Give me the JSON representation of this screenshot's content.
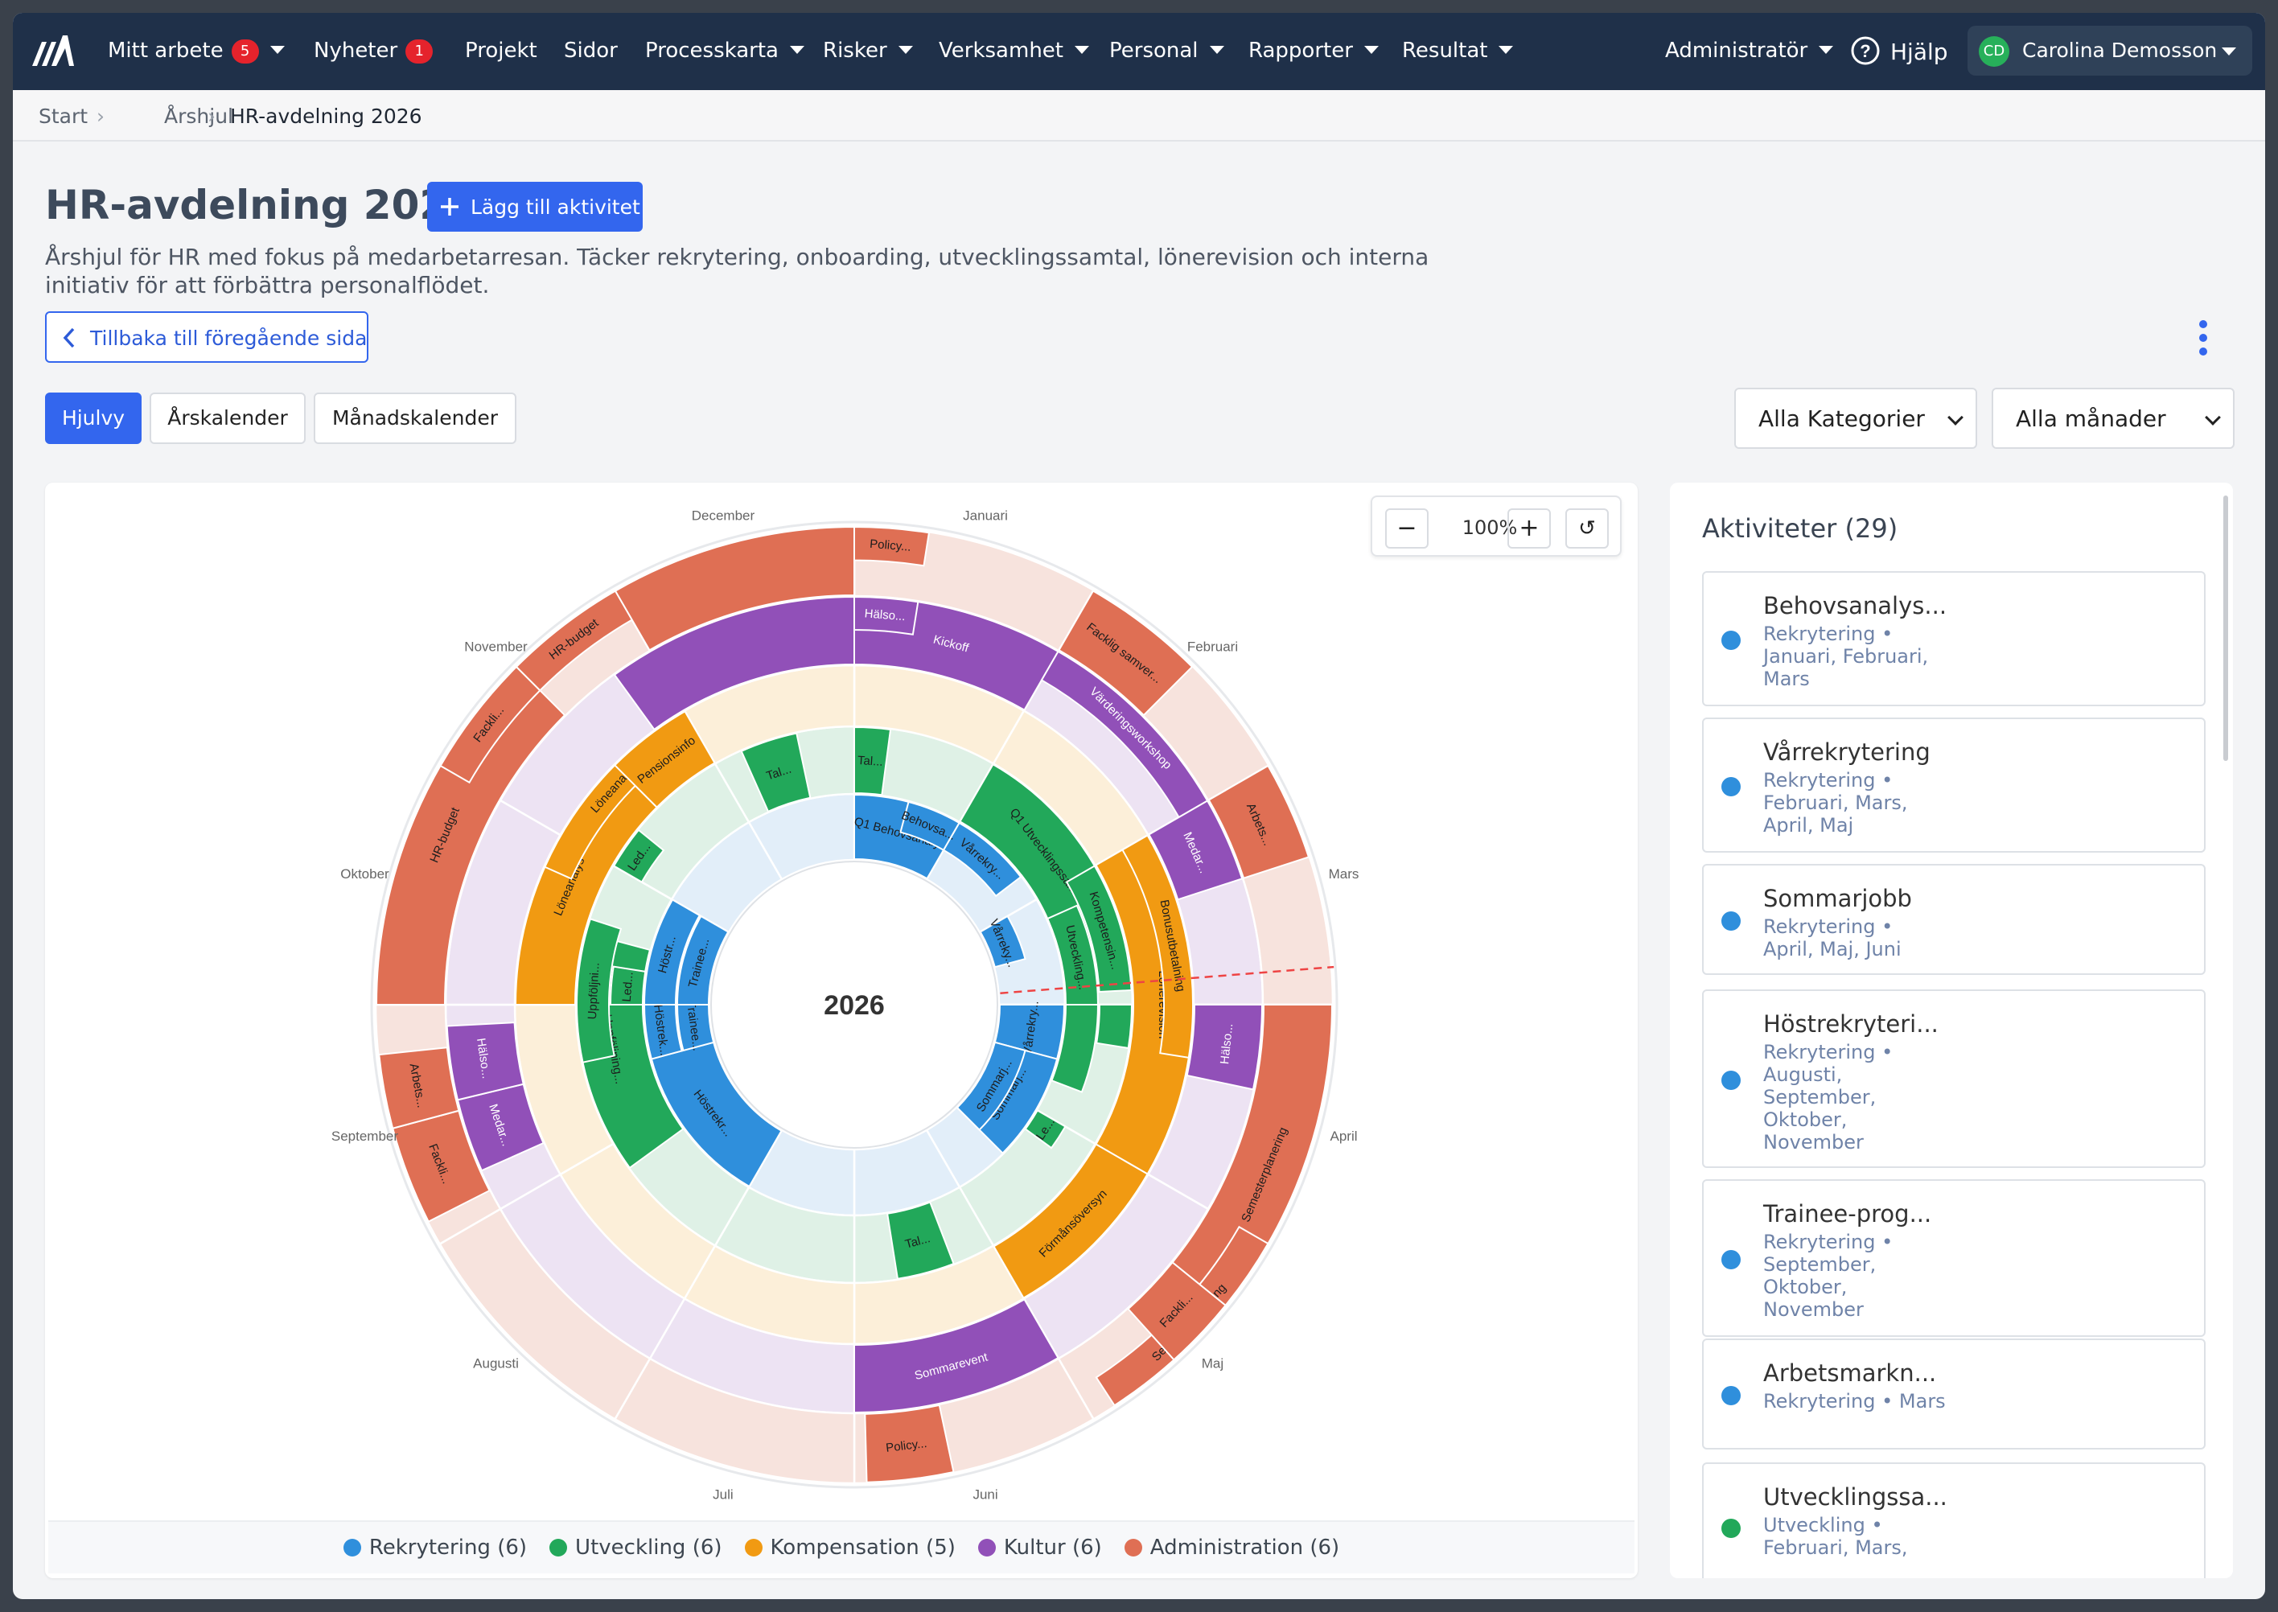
{
  "nav": {
    "items": [
      {
        "label": "Mitt arbete",
        "badge": "5",
        "dropdown": true
      },
      {
        "label": "Nyheter",
        "badge": "1",
        "dropdown": false
      },
      {
        "label": "Projekt",
        "badge": null,
        "dropdown": false
      },
      {
        "label": "Sidor",
        "badge": null,
        "dropdown": false
      },
      {
        "label": "Processkarta",
        "badge": null,
        "dropdown": true
      },
      {
        "label": "Risker",
        "badge": null,
        "dropdown": true
      },
      {
        "label": "Verksamhet",
        "badge": null,
        "dropdown": true
      },
      {
        "label": "Personal",
        "badge": null,
        "dropdown": true
      },
      {
        "label": "Rapporter",
        "badge": null,
        "dropdown": true
      },
      {
        "label": "Resultat",
        "badge": null,
        "dropdown": true
      }
    ],
    "admin_label": "Administratör",
    "help_label": "Hjälp",
    "user_initials": "CD",
    "user_name": "Carolina Demosson"
  },
  "breadcrumb": [
    "Start",
    "Årshjul",
    "HR-avdelning 2026"
  ],
  "page": {
    "title": "HR-avdelning 2026",
    "add_button": "Lägg till aktivitet",
    "description": "Årshjul för HR med fokus på medarbetarresan. Täcker rekrytering, onboarding, utvecklingssamtal, lönerevision och interna initiativ för att förbättra personalflödet.",
    "back_button": "Tillbaka till föregående sida"
  },
  "views": [
    "Hjulvy",
    "Årskalender",
    "Månadskalender"
  ],
  "active_view": "Hjulvy",
  "filters": {
    "category": "Alla Kategorier",
    "month": "Alla månader"
  },
  "zoom": "100%",
  "wheel": {
    "year": "2026",
    "months": [
      "Januari",
      "Februari",
      "Mars",
      "April",
      "Maj",
      "Juni",
      "Juli",
      "Augusti",
      "September",
      "Oktober",
      "November",
      "December"
    ],
    "categories": [
      {
        "name": "Rekrytering",
        "count": 6,
        "color": "#2f8fdc",
        "tint": "#e2eef9"
      },
      {
        "name": "Utveckling",
        "count": 6,
        "color": "#22a85a",
        "tint": "#dff1e6"
      },
      {
        "name": "Kompensation",
        "count": 5,
        "color": "#f19a12",
        "tint": "#fcefd9"
      },
      {
        "name": "Kultur",
        "count": 6,
        "color": "#9150b8",
        "tint": "#ede3f3"
      },
      {
        "name": "Administration",
        "count": 6,
        "color": "#df6f54",
        "tint": "#f7e3dd"
      }
    ],
    "activities": [
      {
        "cat": 0,
        "lane": 0,
        "start": 0,
        "end": 1,
        "label": "Q1 Behovsanalys"
      },
      {
        "cat": 0,
        "lane": 1,
        "start": 1,
        "end": 1.75,
        "label": "Vårrekry..."
      },
      {
        "cat": 0,
        "lane": 1,
        "start": 0.5,
        "end": 1,
        "label": "Behovsa..."
      },
      {
        "cat": 0,
        "lane": 2,
        "start": 2,
        "end": 2.5,
        "label": "Vårreky..."
      },
      {
        "cat": 0,
        "lane": 0,
        "start": 3,
        "end": 3.5,
        "label": "Vårrekry..."
      },
      {
        "cat": 0,
        "lane": 0,
        "start": 3.5,
        "end": 4.5,
        "label": "Sommarj..."
      },
      {
        "cat": 0,
        "lane": 2,
        "start": 3.5,
        "end": 4.5,
        "label": "Sommarj..."
      },
      {
        "cat": 0,
        "lane": 0,
        "start": 7,
        "end": 8.5,
        "label": "Höstrekr..."
      },
      {
        "cat": 0,
        "lane": 1,
        "start": 8.5,
        "end": 9,
        "label": "Höstrek..."
      },
      {
        "cat": 0,
        "lane": 2,
        "start": 8.5,
        "end": 9,
        "label": "Trainee..."
      },
      {
        "cat": 0,
        "lane": 1,
        "start": 9,
        "end": 10,
        "label": "Höstr..."
      },
      {
        "cat": 0,
        "lane": 2,
        "start": 9,
        "end": 10,
        "label": "Trainee..."
      },
      {
        "cat": 1,
        "lane": 0,
        "start": 0,
        "end": 0.25,
        "label": "Tal..."
      },
      {
        "cat": 1,
        "lane": 0,
        "start": 1,
        "end": 2.5,
        "label": "Q1 Utvecklingssamtal"
      },
      {
        "cat": 1,
        "lane": 1,
        "start": 2,
        "end": 2.9,
        "label": "Kompetensin..."
      },
      {
        "cat": 1,
        "lane": 2,
        "start": 2.2,
        "end": 3,
        "label": "Utveckling..."
      },
      {
        "cat": 1,
        "lane": 1,
        "start": 3,
        "end": 3.3,
        "label": ""
      },
      {
        "cat": 1,
        "lane": 2,
        "start": 3,
        "end": 3.7,
        "label": ""
      },
      {
        "cat": 1,
        "lane": 2,
        "start": 4,
        "end": 4.2,
        "label": "Le..."
      },
      {
        "cat": 1,
        "lane": 0,
        "start": 5.3,
        "end": 5.7,
        "label": "Tal..."
      },
      {
        "cat": 1,
        "lane": 0,
        "start": 7.8,
        "end": 9.5,
        "label": "Uppföljning..."
      },
      {
        "cat": 1,
        "lane": 1,
        "start": 8.6,
        "end": 9.6,
        "label": "Uppföljni..."
      },
      {
        "cat": 1,
        "lane": 2,
        "start": 9,
        "end": 9.3,
        "label": "Led..."
      },
      {
        "cat": 1,
        "lane": 1,
        "start": 10,
        "end": 10.3,
        "label": "Led..."
      },
      {
        "cat": 1,
        "lane": 0,
        "start": 11.2,
        "end": 11.6,
        "label": "Tal..."
      },
      {
        "cat": 2,
        "lane": 0,
        "start": 2,
        "end": 4,
        "label": "Lönerevision"
      },
      {
        "cat": 2,
        "lane": 1,
        "start": 2,
        "end": 3.3,
        "label": "Bonusutbetalning"
      },
      {
        "cat": 2,
        "lane": 0,
        "start": 4,
        "end": 5,
        "label": "Förmånsöversyn"
      },
      {
        "cat": 2,
        "lane": 0,
        "start": 9,
        "end": 10.5,
        "label": "Löneanalys"
      },
      {
        "cat": 2,
        "lane": 1,
        "start": 9.8,
        "end": 11,
        "label": "Löneanalys"
      },
      {
        "cat": 2,
        "lane": 0,
        "start": 10.5,
        "end": 11,
        "label": "Pensionsinfo"
      },
      {
        "cat": 3,
        "lane": 0,
        "start": 0,
        "end": 1,
        "label": "Kickoff"
      },
      {
        "cat": 3,
        "lane": 1,
        "start": 1,
        "end": 2,
        "label": "Värderingsworkshop"
      },
      {
        "cat": 3,
        "lane": 1,
        "start": 0,
        "end": 0.3,
        "label": "Hälso..."
      },
      {
        "cat": 3,
        "lane": 0,
        "start": 2,
        "end": 2.4,
        "label": "Medar..."
      },
      {
        "cat": 3,
        "lane": 0,
        "start": 3,
        "end": 3.4,
        "label": "Hälso..."
      },
      {
        "cat": 3,
        "lane": 0,
        "start": 5,
        "end": 6,
        "label": "Sommarevent"
      },
      {
        "cat": 3,
        "lane": 0,
        "start": 8.2,
        "end": 8.55,
        "label": "Medar..."
      },
      {
        "cat": 3,
        "lane": 0,
        "start": 8.55,
        "end": 8.9,
        "label": "Hälso..."
      },
      {
        "cat": 3,
        "lane": 0,
        "start": 10.8,
        "end": 12,
        "label": ""
      },
      {
        "cat": 4,
        "lane": 1,
        "start": 0,
        "end": 0.3,
        "label": "Policy..."
      },
      {
        "cat": 4,
        "lane": 0,
        "start": 1,
        "end": 1.5,
        "label": "Facklig samver..."
      },
      {
        "cat": 4,
        "lane": 0,
        "start": 2,
        "end": 2.4,
        "label": "Arbets..."
      },
      {
        "cat": 4,
        "lane": 0,
        "start": 3,
        "end": 4.5,
        "label": "Semesterplanering"
      },
      {
        "cat": 4,
        "lane": 1,
        "start": 4,
        "end": 4.9,
        "label": "Semesterplanering"
      },
      {
        "cat": 4,
        "lane": 0,
        "start": 4.3,
        "end": 4.6,
        "label": "Fackli..."
      },
      {
        "cat": 4,
        "lane": 0,
        "start": 5.6,
        "end": 5.95,
        "label": "Policy..."
      },
      {
        "cat": 4,
        "lane": 0,
        "start": 8.1,
        "end": 8.5,
        "label": "Fackli..."
      },
      {
        "cat": 4,
        "lane": 0,
        "start": 8.5,
        "end": 8.8,
        "label": "Arbets..."
      },
      {
        "cat": 4,
        "lane": 0,
        "start": 9,
        "end": 10.5,
        "label": "HR-budget"
      },
      {
        "cat": 4,
        "lane": 1,
        "start": 10,
        "end": 10.5,
        "label": "Fackli..."
      },
      {
        "cat": 4,
        "lane": 1,
        "start": 10.5,
        "end": 11,
        "label": "HR-budget"
      },
      {
        "cat": 4,
        "lane": 0,
        "start": 11,
        "end": 12,
        "label": ""
      }
    ]
  },
  "activities_panel": {
    "heading": "Aktiviteter (29)",
    "items": [
      {
        "title": "Behovsanalys...",
        "meta": "Rekrytering • Januari, Februari, Mars",
        "cat": 0
      },
      {
        "title": "Vårrekrytering",
        "meta": "Rekrytering • Februari, Mars, April, Maj",
        "cat": 0
      },
      {
        "title": "Sommarjobb",
        "meta": "Rekrytering • April, Maj, Juni",
        "cat": 0
      },
      {
        "title": "Höstrekryteri...",
        "meta": "Rekrytering • Augusti, September, Oktober, November",
        "cat": 0
      },
      {
        "title": "Trainee-prog...",
        "meta": "Rekrytering • September, Oktober, November",
        "cat": 0
      },
      {
        "title": "Arbetsmarkn...",
        "meta": "Rekrytering • Mars",
        "cat": 0
      },
      {
        "title": "Utvecklingssa...",
        "meta": "Utveckling • Februari, Mars,",
        "cat": 1
      }
    ]
  }
}
